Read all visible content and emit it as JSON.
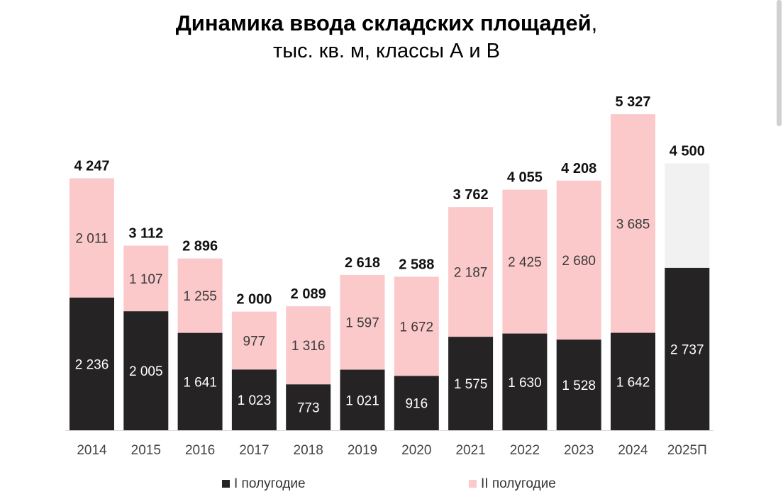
{
  "chart_data": {
    "type": "bar",
    "stacked": true,
    "title_main": "Динамика ввода складских площадей",
    "title_comma": ",",
    "subtitle": "тыс. кв. м, классы А и В",
    "categories": [
      "2014",
      "2015",
      "2016",
      "2017",
      "2018",
      "2019",
      "2020",
      "2021",
      "2022",
      "2023",
      "2024",
      "2025П"
    ],
    "series": [
      {
        "name": "I полугодие",
        "values": [
          2236,
          2005,
          1641,
          1023,
          773,
          1021,
          916,
          1575,
          1630,
          1528,
          1642,
          2737
        ],
        "labels": [
          "2 236",
          "2 005",
          "1 641",
          "1 023",
          "773",
          "1 021",
          "916",
          "1 575",
          "1 630",
          "1 528",
          "1 642",
          "2 737"
        ]
      },
      {
        "name": "II полугодие",
        "values": [
          2011,
          1107,
          1255,
          977,
          1316,
          1597,
          1672,
          2187,
          2425,
          2680,
          3685,
          1763
        ],
        "labels": [
          "2 011",
          "1 107",
          "1 255",
          "977",
          "1 316",
          "1 597",
          "1 672",
          "2 187",
          "2 425",
          "2 680",
          "3 685",
          ""
        ]
      }
    ],
    "totals": [
      4247,
      3112,
      2896,
      2000,
      2089,
      2618,
      2588,
      3762,
      4055,
      4208,
      5327,
      4500
    ],
    "total_labels": [
      "4 247",
      "3 112",
      "2 896",
      "2 000",
      "2 089",
      "2 618",
      "2 588",
      "3 762",
      "4 055",
      "4 208",
      "5 327",
      "4 500"
    ],
    "forecast_index": 11,
    "ylim": [
      0,
      5700
    ],
    "grid": false,
    "legend_position": "bottom",
    "colors": {
      "h1": "#252324",
      "h2": "#fcc9cb",
      "forecast_h2": "#f1f1f1",
      "h1_text": "#ffffff",
      "h2_text": "#3a3a3a",
      "total_text": "#111111",
      "axis": "#d9d9d9",
      "tick_text": "#444444"
    }
  }
}
